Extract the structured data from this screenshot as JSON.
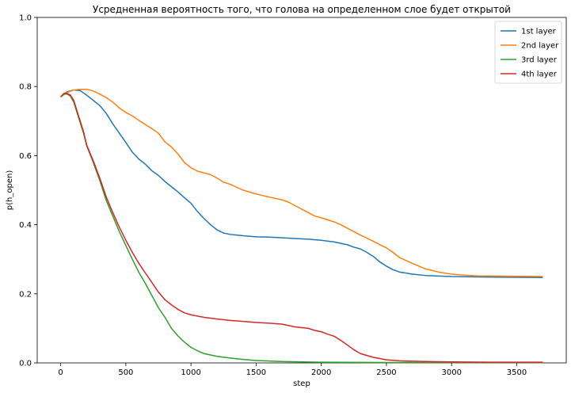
{
  "chart_data": {
    "type": "line",
    "title": "Усредненная вероятность того, что голова на определенном слое будет открытой",
    "xlabel": "step",
    "ylabel": "p(h_open)",
    "xlim": [
      -180,
      3880
    ],
    "ylim": [
      0.0,
      1.0
    ],
    "xticks": [
      0,
      500,
      1000,
      1500,
      2000,
      2500,
      3000,
      3500
    ],
    "yticks": [
      0.0,
      0.2,
      0.4,
      0.6,
      0.8,
      1.0
    ],
    "legend": "top-right",
    "grid": false,
    "series": [
      {
        "name": "1st layer",
        "color": "#1f77b4",
        "points": [
          [
            0,
            0.77
          ],
          [
            50,
            0.785
          ],
          [
            100,
            0.79
          ],
          [
            150,
            0.788
          ],
          [
            200,
            0.775
          ],
          [
            250,
            0.76
          ],
          [
            300,
            0.745
          ],
          [
            350,
            0.722
          ],
          [
            400,
            0.692
          ],
          [
            450,
            0.665
          ],
          [
            500,
            0.638
          ],
          [
            550,
            0.61
          ],
          [
            600,
            0.59
          ],
          [
            650,
            0.575
          ],
          [
            700,
            0.556
          ],
          [
            750,
            0.543
          ],
          [
            800,
            0.525
          ],
          [
            850,
            0.51
          ],
          [
            900,
            0.495
          ],
          [
            950,
            0.478
          ],
          [
            1000,
            0.462
          ],
          [
            1050,
            0.438
          ],
          [
            1100,
            0.418
          ],
          [
            1150,
            0.4
          ],
          [
            1200,
            0.385
          ],
          [
            1250,
            0.376
          ],
          [
            1300,
            0.372
          ],
          [
            1400,
            0.368
          ],
          [
            1500,
            0.365
          ],
          [
            1600,
            0.364
          ],
          [
            1700,
            0.362
          ],
          [
            1800,
            0.36
          ],
          [
            1900,
            0.358
          ],
          [
            2000,
            0.355
          ],
          [
            2100,
            0.35
          ],
          [
            2200,
            0.342
          ],
          [
            2250,
            0.335
          ],
          [
            2300,
            0.33
          ],
          [
            2350,
            0.32
          ],
          [
            2400,
            0.308
          ],
          [
            2450,
            0.292
          ],
          [
            2500,
            0.28
          ],
          [
            2550,
            0.27
          ],
          [
            2600,
            0.263
          ],
          [
            2700,
            0.257
          ],
          [
            2800,
            0.253
          ],
          [
            3000,
            0.25
          ],
          [
            3200,
            0.249
          ],
          [
            3400,
            0.248
          ],
          [
            3700,
            0.247
          ]
        ]
      },
      {
        "name": "2nd layer",
        "color": "#ff7f0e",
        "points": [
          [
            0,
            0.77
          ],
          [
            50,
            0.783
          ],
          [
            100,
            0.79
          ],
          [
            150,
            0.792
          ],
          [
            200,
            0.792
          ],
          [
            250,
            0.787
          ],
          [
            300,
            0.778
          ],
          [
            350,
            0.768
          ],
          [
            400,
            0.755
          ],
          [
            450,
            0.738
          ],
          [
            500,
            0.725
          ],
          [
            550,
            0.715
          ],
          [
            600,
            0.702
          ],
          [
            650,
            0.69
          ],
          [
            700,
            0.678
          ],
          [
            750,
            0.665
          ],
          [
            800,
            0.64
          ],
          [
            850,
            0.625
          ],
          [
            900,
            0.605
          ],
          [
            950,
            0.58
          ],
          [
            1000,
            0.565
          ],
          [
            1050,
            0.555
          ],
          [
            1100,
            0.55
          ],
          [
            1150,
            0.545
          ],
          [
            1200,
            0.535
          ],
          [
            1250,
            0.523
          ],
          [
            1300,
            0.517
          ],
          [
            1400,
            0.5
          ],
          [
            1500,
            0.489
          ],
          [
            1600,
            0.48
          ],
          [
            1700,
            0.472
          ],
          [
            1750,
            0.465
          ],
          [
            1800,
            0.455
          ],
          [
            1850,
            0.445
          ],
          [
            1900,
            0.435
          ],
          [
            1950,
            0.425
          ],
          [
            2000,
            0.42
          ],
          [
            2100,
            0.408
          ],
          [
            2150,
            0.4
          ],
          [
            2200,
            0.39
          ],
          [
            2300,
            0.37
          ],
          [
            2400,
            0.352
          ],
          [
            2450,
            0.342
          ],
          [
            2500,
            0.333
          ],
          [
            2550,
            0.32
          ],
          [
            2600,
            0.305
          ],
          [
            2700,
            0.288
          ],
          [
            2800,
            0.272
          ],
          [
            2900,
            0.263
          ],
          [
            3000,
            0.257
          ],
          [
            3100,
            0.254
          ],
          [
            3200,
            0.252
          ],
          [
            3400,
            0.251
          ],
          [
            3700,
            0.25
          ]
        ]
      },
      {
        "name": "3rd layer",
        "color": "#2ca02c",
        "points": [
          [
            0,
            0.77
          ],
          [
            25,
            0.778
          ],
          [
            50,
            0.778
          ],
          [
            75,
            0.772
          ],
          [
            100,
            0.755
          ],
          [
            125,
            0.725
          ],
          [
            150,
            0.695
          ],
          [
            175,
            0.665
          ],
          [
            200,
            0.628
          ],
          [
            250,
            0.58
          ],
          [
            300,
            0.528
          ],
          [
            350,
            0.47
          ],
          [
            400,
            0.425
          ],
          [
            450,
            0.38
          ],
          [
            500,
            0.34
          ],
          [
            550,
            0.3
          ],
          [
            600,
            0.262
          ],
          [
            650,
            0.23
          ],
          [
            700,
            0.195
          ],
          [
            750,
            0.16
          ],
          [
            800,
            0.132
          ],
          [
            850,
            0.1
          ],
          [
            900,
            0.078
          ],
          [
            950,
            0.06
          ],
          [
            1000,
            0.045
          ],
          [
            1050,
            0.035
          ],
          [
            1100,
            0.027
          ],
          [
            1200,
            0.019
          ],
          [
            1300,
            0.014
          ],
          [
            1400,
            0.01
          ],
          [
            1500,
            0.007
          ],
          [
            1700,
            0.004
          ],
          [
            2000,
            0.002
          ],
          [
            2500,
            0.001
          ],
          [
            3000,
            0.001
          ],
          [
            3700,
            0.001
          ]
        ]
      },
      {
        "name": "4th layer",
        "color": "#d62728",
        "points": [
          [
            0,
            0.77
          ],
          [
            25,
            0.78
          ],
          [
            50,
            0.78
          ],
          [
            75,
            0.775
          ],
          [
            100,
            0.76
          ],
          [
            125,
            0.73
          ],
          [
            150,
            0.7
          ],
          [
            175,
            0.67
          ],
          [
            200,
            0.63
          ],
          [
            250,
            0.585
          ],
          [
            300,
            0.535
          ],
          [
            350,
            0.48
          ],
          [
            400,
            0.435
          ],
          [
            450,
            0.393
          ],
          [
            500,
            0.355
          ],
          [
            550,
            0.32
          ],
          [
            600,
            0.288
          ],
          [
            650,
            0.26
          ],
          [
            700,
            0.233
          ],
          [
            750,
            0.205
          ],
          [
            800,
            0.183
          ],
          [
            850,
            0.168
          ],
          [
            900,
            0.155
          ],
          [
            950,
            0.145
          ],
          [
            1000,
            0.139
          ],
          [
            1100,
            0.132
          ],
          [
            1200,
            0.127
          ],
          [
            1300,
            0.123
          ],
          [
            1400,
            0.12
          ],
          [
            1500,
            0.117
          ],
          [
            1600,
            0.115
          ],
          [
            1700,
            0.112
          ],
          [
            1750,
            0.108
          ],
          [
            1800,
            0.104
          ],
          [
            1900,
            0.1
          ],
          [
            1950,
            0.094
          ],
          [
            2000,
            0.09
          ],
          [
            2050,
            0.083
          ],
          [
            2100,
            0.077
          ],
          [
            2150,
            0.065
          ],
          [
            2200,
            0.052
          ],
          [
            2250,
            0.038
          ],
          [
            2300,
            0.027
          ],
          [
            2400,
            0.016
          ],
          [
            2500,
            0.009
          ],
          [
            2600,
            0.006
          ],
          [
            2800,
            0.004
          ],
          [
            3000,
            0.003
          ],
          [
            3300,
            0.002
          ],
          [
            3700,
            0.002
          ]
        ]
      }
    ]
  }
}
